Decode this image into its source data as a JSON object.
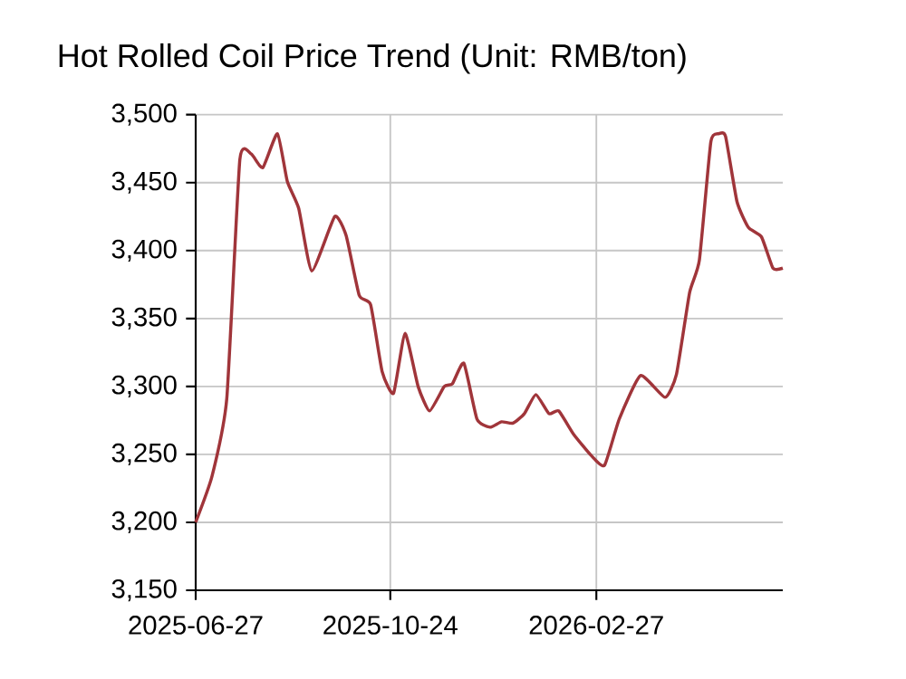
{
  "chart_data": {
    "type": "line",
    "title": "Hot Rolled Coil Price Trend (Unit: RMB/ton)",
    "x": [
      "2025-06-27",
      "2025-07-07",
      "2025-07-16",
      "2025-07-24",
      "2025-07-31",
      "2025-08-07",
      "2025-08-16",
      "2025-08-22",
      "2025-08-29",
      "2025-09-06",
      "2025-09-20",
      "2025-09-27",
      "2025-10-05",
      "2025-10-12",
      "2025-10-19",
      "2025-10-26",
      "2025-11-02",
      "2025-11-10",
      "2025-11-17",
      "2025-11-26",
      "2025-12-01",
      "2025-12-08",
      "2025-12-16",
      "2025-12-24",
      "2025-12-31",
      "2026-01-07",
      "2026-01-14",
      "2026-01-21",
      "2026-01-29",
      "2026-02-04",
      "2026-02-13",
      "2026-02-24",
      "2026-03-04",
      "2026-03-13",
      "2026-03-26",
      "2026-04-10",
      "2026-04-17",
      "2026-04-25",
      "2026-05-01",
      "2026-05-08",
      "2026-05-13",
      "2026-05-17",
      "2026-05-24",
      "2026-05-31",
      "2026-06-08",
      "2026-06-15",
      "2026-06-21"
    ],
    "values": [
      3200,
      3234,
      3291,
      3467,
      3471,
      3461,
      3486,
      3451,
      3431,
      3385,
      3425,
      3411,
      3367,
      3360,
      3311,
      3295,
      3339,
      3300,
      3282,
      3300,
      3302,
      3317,
      3276,
      3270,
      3274,
      3273,
      3280,
      3294,
      3280,
      3282,
      3265,
      3249,
      3242,
      3276,
      3308,
      3292,
      3309,
      3369,
      3393,
      3480,
      3486,
      3484,
      3436,
      3417,
      3410,
      3387,
      3387
    ],
    "color": "#a0353a",
    "xlim": [
      "2025-06-27",
      "2026-06-21"
    ],
    "xticks": [
      "2025-06-27",
      "2025-10-24",
      "2026-02-27"
    ],
    "ylim": [
      3150,
      3500
    ],
    "yticks": [
      {
        "value": 3150,
        "label": "3,150"
      },
      {
        "value": 3200,
        "label": "3,200"
      },
      {
        "value": 3250,
        "label": "3,250"
      },
      {
        "value": 3300,
        "label": "3,300"
      },
      {
        "value": 3350,
        "label": "3,350"
      },
      {
        "value": 3400,
        "label": "3,400"
      },
      {
        "value": 3450,
        "label": "3,450"
      },
      {
        "value": 3500,
        "label": "3,500"
      }
    ],
    "grid": true,
    "marker": "none",
    "line_style": "solid"
  }
}
